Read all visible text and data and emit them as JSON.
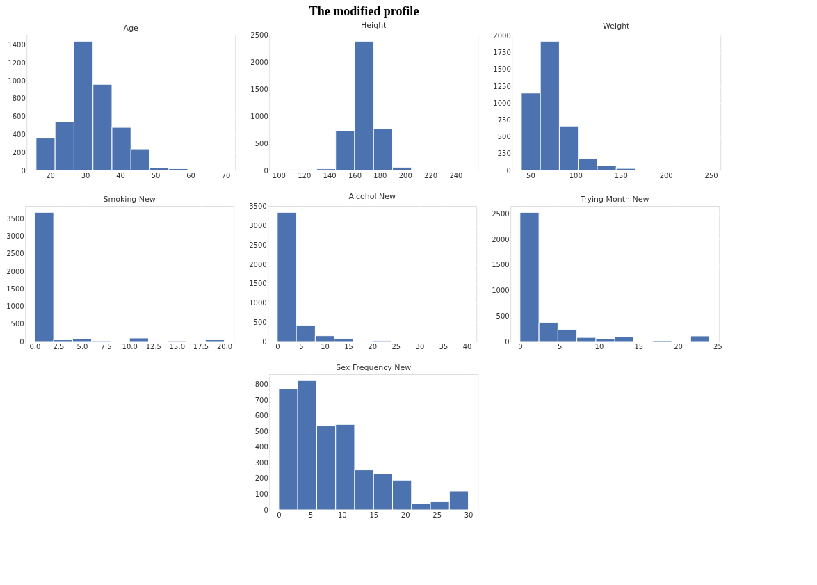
{
  "chart_data": [
    {
      "type": "histogram",
      "title": "Age",
      "annotations": [
        "The modified profile"
      ],
      "color": "#4c72b0",
      "grid": true,
      "bins": [
        16,
        21.4,
        26.8,
        32.2,
        37.6,
        43,
        48.4,
        53.8,
        59.2,
        64.6,
        70
      ],
      "values": [
        360,
        540,
        1440,
        960,
        480,
        240,
        30,
        20,
        0,
        0
      ],
      "xlim": [
        13.3,
        72.7
      ],
      "xticks": [
        20,
        30,
        40,
        50,
        60,
        70
      ],
      "ylim": [
        0,
        1512
      ],
      "yticks": [
        0,
        200,
        400,
        600,
        800,
        1000,
        1200,
        1400
      ]
    },
    {
      "type": "histogram",
      "title": "Height",
      "color": "#4c72b0",
      "grid": true,
      "bins": [
        100,
        115,
        130,
        145,
        160,
        175,
        190,
        205,
        220,
        235,
        250
      ],
      "values": [
        20,
        20,
        30,
        740,
        2390,
        770,
        60,
        10,
        10,
        10
      ],
      "xlim": [
        92.5,
        257.5
      ],
      "xticks": [
        100,
        120,
        140,
        160,
        180,
        200,
        220,
        240
      ],
      "ylim": [
        0,
        2510
      ],
      "yticks": [
        0,
        500,
        1000,
        1500,
        2000,
        2500
      ]
    },
    {
      "type": "histogram",
      "title": "Weight",
      "color": "#4c72b0",
      "grid": true,
      "bins": [
        40,
        61,
        82,
        103,
        124,
        145,
        166,
        187,
        208,
        229,
        250
      ],
      "values": [
        1150,
        1920,
        660,
        180,
        70,
        30,
        10,
        10,
        10,
        10
      ],
      "xlim": [
        29.5,
        260.5
      ],
      "xticks": [
        50,
        100,
        150,
        200,
        250
      ],
      "ylim": [
        0,
        2016
      ],
      "yticks": [
        0,
        250,
        500,
        750,
        1000,
        1250,
        1500,
        1750,
        2000
      ]
    },
    {
      "type": "histogram",
      "title": "Smoking New",
      "color": "#4c72b0",
      "grid": true,
      "bins": [
        0,
        2,
        4,
        6,
        8,
        10,
        12,
        14,
        16,
        18,
        20
      ],
      "values": [
        3680,
        50,
        80,
        20,
        10,
        100,
        0,
        20,
        0,
        50
      ],
      "xlim": [
        -1,
        21
      ],
      "xticks": [
        {
          "value": 0,
          "label": "0.0"
        },
        2.5,
        {
          "value": 5,
          "label": "5.0"
        },
        7.5,
        {
          "value": 10,
          "label": "10.0"
        },
        12.5,
        {
          "value": 15,
          "label": "15.0"
        },
        17.5,
        {
          "value": 20,
          "label": "20.0"
        }
      ],
      "ylim": [
        0,
        3864
      ],
      "yticks": [
        0,
        500,
        1000,
        1500,
        2000,
        2500,
        3000,
        3500
      ]
    },
    {
      "type": "histogram",
      "title": "Alcohol New",
      "color": "#4c72b0",
      "grid": true,
      "bins": [
        0,
        4,
        8,
        12,
        16,
        20,
        24,
        28,
        32,
        36,
        40
      ],
      "values": [
        3350,
        420,
        150,
        80,
        0,
        20,
        0,
        0,
        0,
        0
      ],
      "xlim": [
        -2,
        42
      ],
      "xticks": [
        0,
        5,
        10,
        15,
        20,
        25,
        30,
        35,
        40
      ],
      "ylim": [
        0,
        3518
      ],
      "yticks": [
        0,
        500,
        1000,
        1500,
        2000,
        2500,
        3000,
        3500
      ]
    },
    {
      "type": "histogram",
      "title": "Trying Month New",
      "color": "#4c72b0",
      "grid": true,
      "bins": [
        0,
        2.4,
        4.8,
        7.2,
        9.6,
        12,
        14.4,
        16.8,
        19.2,
        21.6,
        24
      ],
      "values": [
        2530,
        370,
        240,
        80,
        50,
        90,
        0,
        20,
        0,
        110
      ],
      "xlim": [
        -1.2,
        25.2
      ],
      "xticks": [
        0,
        5,
        10,
        15,
        20,
        25
      ],
      "ylim": [
        0,
        2657
      ],
      "yticks": [
        0,
        500,
        1000,
        1500,
        2000,
        2500
      ]
    },
    {
      "type": "histogram",
      "title": "Sex Frequency New",
      "color": "#4c72b0",
      "grid": true,
      "bins": [
        0,
        3,
        6,
        9,
        12,
        15,
        18,
        21,
        24,
        27,
        30
      ],
      "values": [
        775,
        825,
        535,
        545,
        255,
        230,
        190,
        40,
        55,
        120
      ],
      "xlim": [
        -1.5,
        31.5
      ],
      "xticks": [
        0,
        5,
        10,
        15,
        20,
        25,
        30
      ],
      "ylim": [
        0,
        866
      ],
      "yticks": [
        0,
        100,
        200,
        300,
        400,
        500,
        600,
        700,
        800
      ]
    }
  ]
}
